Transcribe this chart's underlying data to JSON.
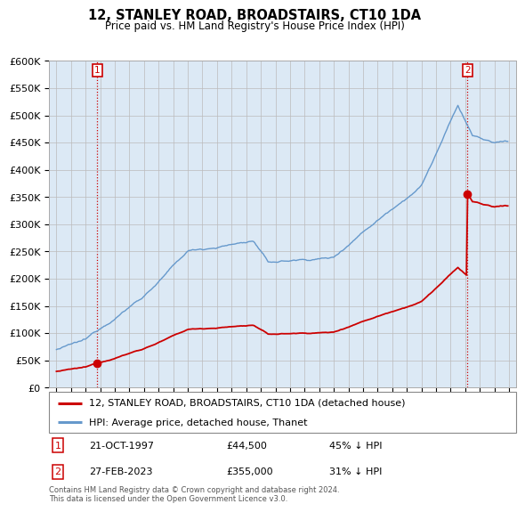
{
  "title": "12, STANLEY ROAD, BROADSTAIRS, CT10 1DA",
  "subtitle": "Price paid vs. HM Land Registry's House Price Index (HPI)",
  "legend_line1": "12, STANLEY ROAD, BROADSTAIRS, CT10 1DA (detached house)",
  "legend_line2": "HPI: Average price, detached house, Thanet",
  "footnote": "Contains HM Land Registry data © Crown copyright and database right 2024.\nThis data is licensed under the Open Government Licence v3.0.",
  "transaction1_date": "21-OCT-1997",
  "transaction1_price": "£44,500",
  "transaction1_hpi": "45% ↓ HPI",
  "transaction2_date": "27-FEB-2023",
  "transaction2_price": "£355,000",
  "transaction2_hpi": "31% ↓ HPI",
  "sale_color": "#cc0000",
  "hpi_color": "#6699cc",
  "plot_bg": "#dce9f5",
  "ylim": [
    0,
    600000
  ],
  "yticks": [
    0,
    50000,
    100000,
    150000,
    200000,
    250000,
    300000,
    350000,
    400000,
    450000,
    500000,
    550000,
    600000
  ],
  "sale1_x": 1997.8,
  "sale1_y": 44500,
  "sale2_x": 2023.15,
  "sale2_y": 355000,
  "xmin": 1994.5,
  "xmax": 2026.5,
  "background_color": "#ffffff",
  "hpi_start_year": 1995,
  "hpi_end_year": 2026
}
